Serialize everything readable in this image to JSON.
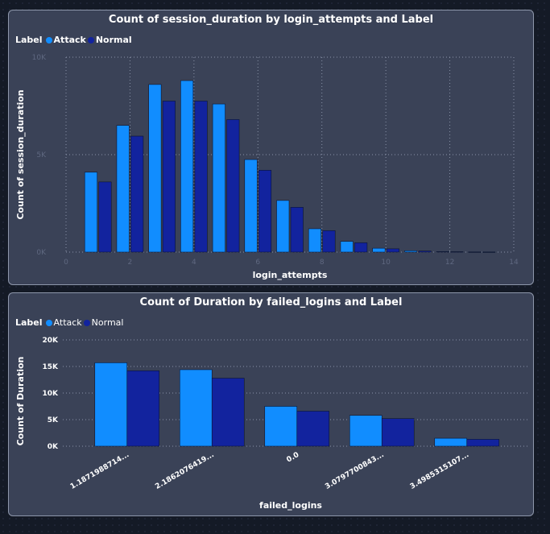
{
  "colors": {
    "attack": "#118dff",
    "normal": "#12239e",
    "grid": "#8a93a8"
  },
  "charts": [
    {
      "title": "Count of session_duration by login_attempts and Label",
      "legend": {
        "title": "Label",
        "items": [
          "Attack",
          "Normal"
        ]
      }
    },
    {
      "title": "Count of Duration by failed_logins and Label",
      "legend": {
        "title": "Label",
        "items": [
          "Attack",
          "Normal"
        ]
      }
    }
  ],
  "chart_data": [
    {
      "type": "bar",
      "title": "Count of session_duration by login_attempts and Label",
      "xlabel": "login_attempts",
      "ylabel": "Count of session_duration",
      "x": [
        1,
        2,
        3,
        4,
        5,
        6,
        7,
        8,
        9,
        10,
        11,
        12,
        13
      ],
      "series": [
        {
          "name": "Attack",
          "values": [
            4100,
            6500,
            8600,
            8800,
            7600,
            4750,
            2650,
            1200,
            550,
            200,
            70,
            25,
            10
          ]
        },
        {
          "name": "Normal",
          "values": [
            3600,
            5950,
            7750,
            7750,
            6800,
            4200,
            2300,
            1100,
            480,
            170,
            55,
            20,
            8
          ]
        }
      ],
      "xlim": [
        0,
        14
      ],
      "ylim": [
        0,
        10000
      ],
      "x_ticks": [
        "0",
        "2",
        "4",
        "6",
        "8",
        "10",
        "12",
        "14"
      ],
      "y_ticks": [
        "0K",
        "5K",
        "10K"
      ],
      "grid": true,
      "legend_position": "top-left"
    },
    {
      "type": "bar",
      "title": "Count of Duration by failed_logins and Label",
      "xlabel": "failed_logins",
      "ylabel": "Count of Duration",
      "categories": [
        "1.1871988714...",
        "2.1862076419...",
        "0.0",
        "3.0797700843...",
        "3.4985315107..."
      ],
      "series": [
        {
          "name": "Attack",
          "values": [
            15700,
            14400,
            7500,
            5800,
            1500
          ]
        },
        {
          "name": "Normal",
          "values": [
            14200,
            12800,
            6600,
            5200,
            1300
          ]
        }
      ],
      "ylim": [
        0,
        20000
      ],
      "y_ticks": [
        "0K",
        "5K",
        "10K",
        "15K",
        "20K"
      ],
      "grid": true,
      "legend_position": "top-left"
    }
  ]
}
